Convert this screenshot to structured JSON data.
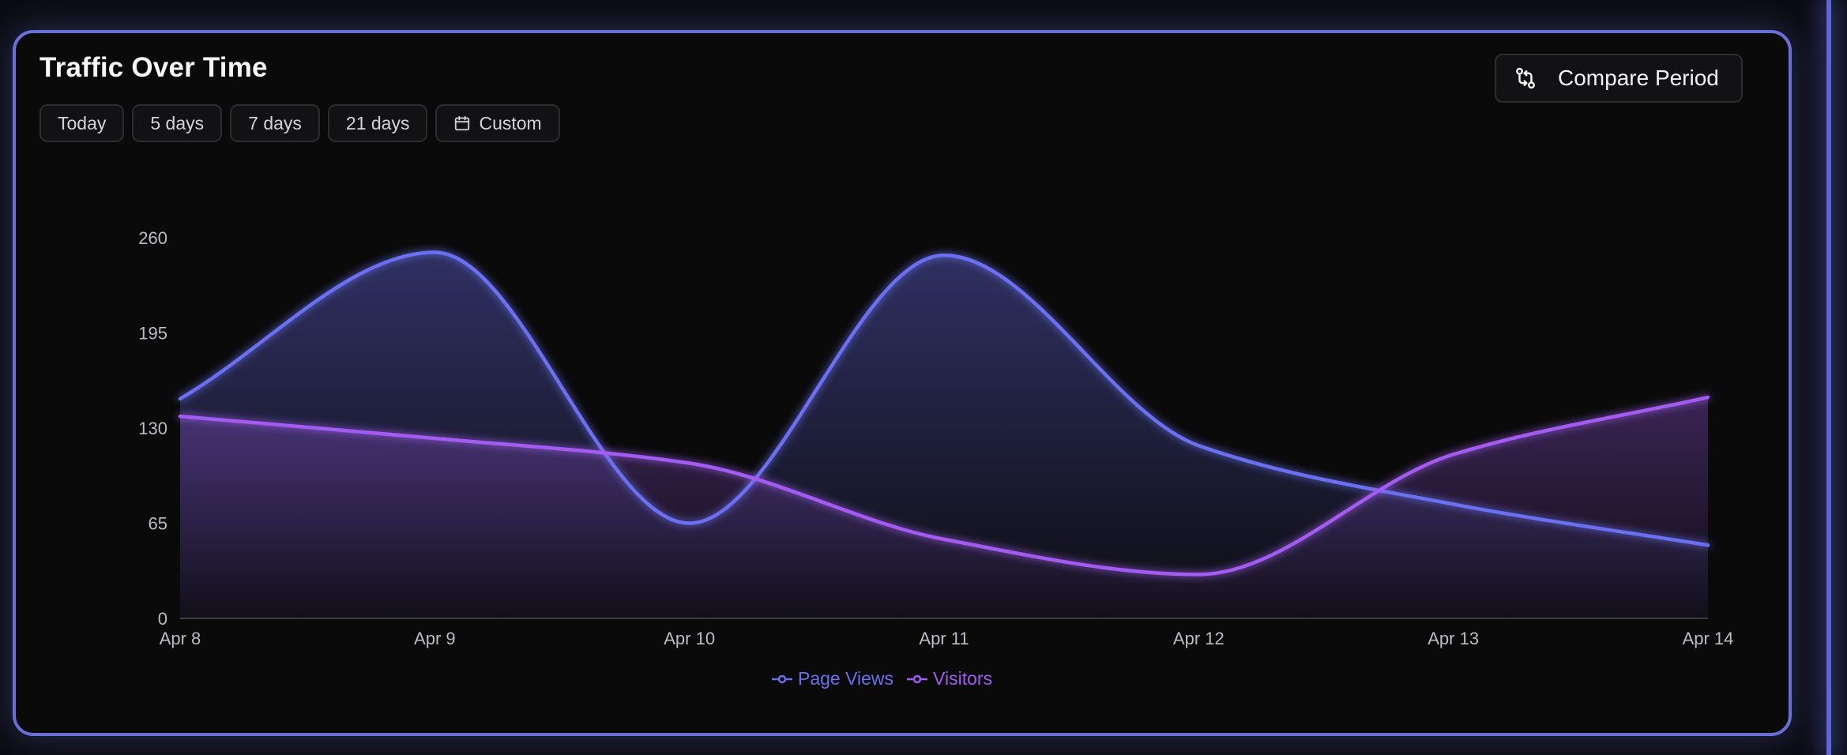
{
  "title": "Traffic Over Time",
  "ranges": [
    "Today",
    "5 days",
    "7 days",
    "21 days",
    "Custom"
  ],
  "compare_label": "Compare Period",
  "icons": {
    "custom": "calendar-icon",
    "compare": "git-compare-icon"
  },
  "colors": {
    "page_views": "#6a6ff0",
    "visitors": "#a25cf0",
    "border": "#6870d8",
    "background": "#0a0a0b"
  },
  "chart_data": {
    "type": "area",
    "title": "Traffic Over Time",
    "categories": [
      "Apr 8",
      "Apr 9",
      "Apr 10",
      "Apr 11",
      "Apr 12",
      "Apr 13",
      "Apr 14"
    ],
    "series": [
      {
        "name": "Page Views",
        "values": [
          150,
          250,
          65,
          248,
          118,
          78,
          50
        ],
        "color": "#6a6ff0"
      },
      {
        "name": "Visitors",
        "values": [
          138,
          123,
          106,
          54,
          30,
          112,
          151
        ],
        "color": "#a25cf0"
      }
    ],
    "y_ticks": [
      0,
      65,
      130,
      195,
      260
    ],
    "ylim": [
      0,
      260
    ],
    "grid": false,
    "legend": "bottom-center"
  }
}
